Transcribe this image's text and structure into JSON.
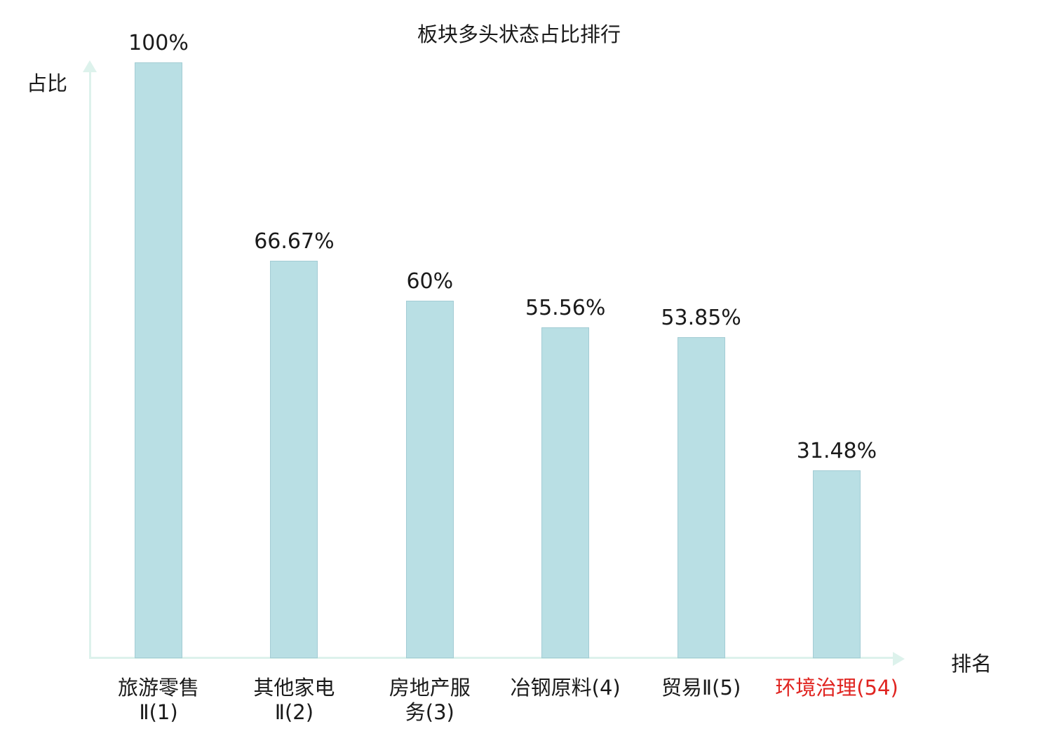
{
  "chart_data": {
    "type": "bar",
    "title": "板块多头状态占比排行",
    "xlabel": "排名",
    "ylabel": "占比",
    "categories": [
      "旅游零售\nⅡ(1)",
      "其他家电\nⅡ(2)",
      "房地产服\n务(3)",
      "冶钢原料(4)",
      "贸易Ⅱ(5)",
      "环境治理(54)"
    ],
    "values": [
      100,
      66.67,
      60,
      55.56,
      53.85,
      31.48
    ],
    "value_labels": [
      "100%",
      "66.67%",
      "60%",
      "55.56%",
      "53.85%",
      "31.48%"
    ],
    "ylim": [
      0,
      100
    ],
    "grid": false,
    "legend": "none",
    "bar_color": "#b9dfe4",
    "bar_border_color": "#a3ccd4",
    "axis_color": "#ddf2ec",
    "text_color": "#1a1a1a",
    "highlight_index": 5,
    "highlight_color": "#e02420"
  }
}
